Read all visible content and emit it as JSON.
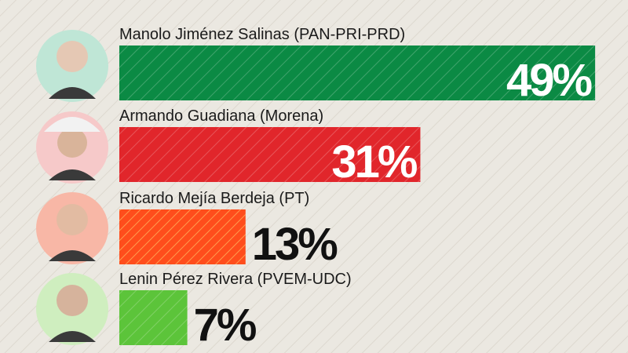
{
  "chart_data": {
    "type": "bar",
    "categories": [
      "Manolo Jiménez Salinas (PAN-PRI-PRD)",
      "Armando Guadiana (Morena)",
      "Ricardo Mejía Berdeja (PT)",
      "Lenin Pérez Rivera (PVEM-UDC)"
    ],
    "values": [
      49,
      31,
      13,
      7
    ],
    "value_labels": [
      "49%",
      "31%",
      "13%",
      "7%"
    ],
    "colors": [
      "#0b8a44",
      "#e1262b",
      "#ff4d1c",
      "#5cc43a"
    ]
  }
}
